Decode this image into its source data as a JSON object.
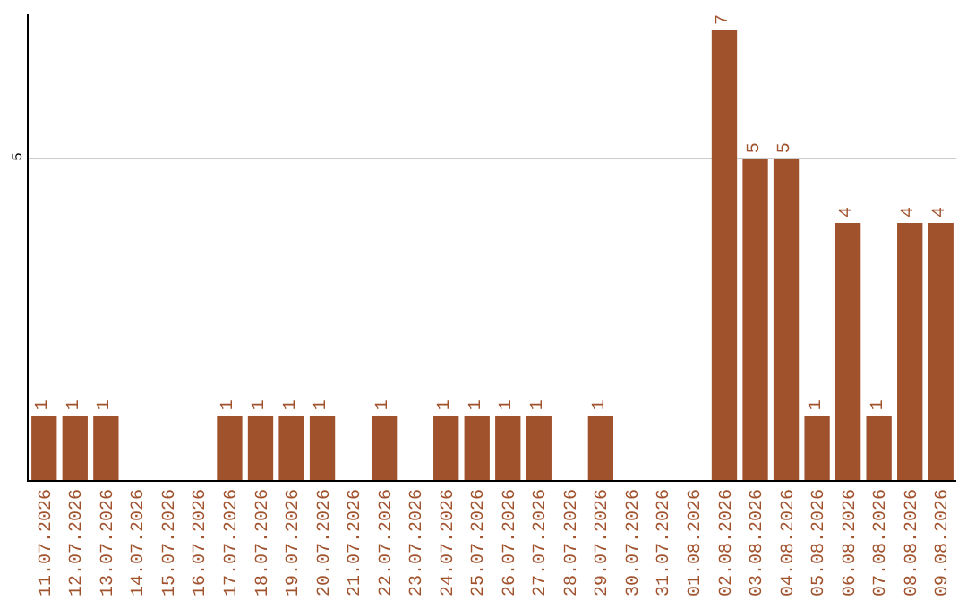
{
  "chart_data": {
    "type": "bar",
    "categories": [
      "11.07.2026",
      "12.07.2026",
      "13.07.2026",
      "14.07.2026",
      "15.07.2026",
      "16.07.2026",
      "17.07.2026",
      "18.07.2026",
      "19.07.2026",
      "20.07.2026",
      "21.07.2026",
      "22.07.2026",
      "23.07.2026",
      "24.07.2026",
      "25.07.2026",
      "26.07.2026",
      "27.07.2026",
      "28.07.2026",
      "29.07.2026",
      "30.07.2026",
      "31.07.2026",
      "01.08.2026",
      "02.08.2026",
      "03.08.2026",
      "04.08.2026",
      "05.08.2026",
      "06.08.2026",
      "07.08.2026",
      "08.08.2026",
      "09.08.2026"
    ],
    "values": [
      1,
      1,
      1,
      null,
      null,
      null,
      1,
      1,
      1,
      1,
      null,
      1,
      null,
      1,
      1,
      1,
      1,
      null,
      1,
      null,
      null,
      null,
      7,
      5,
      5,
      1,
      4,
      1,
      4,
      4
    ],
    "color": "#a0522d",
    "ylim": [
      0,
      7.25
    ],
    "yticks": [
      5
    ],
    "grid": "y",
    "data_labels": true,
    "legend": false
  }
}
